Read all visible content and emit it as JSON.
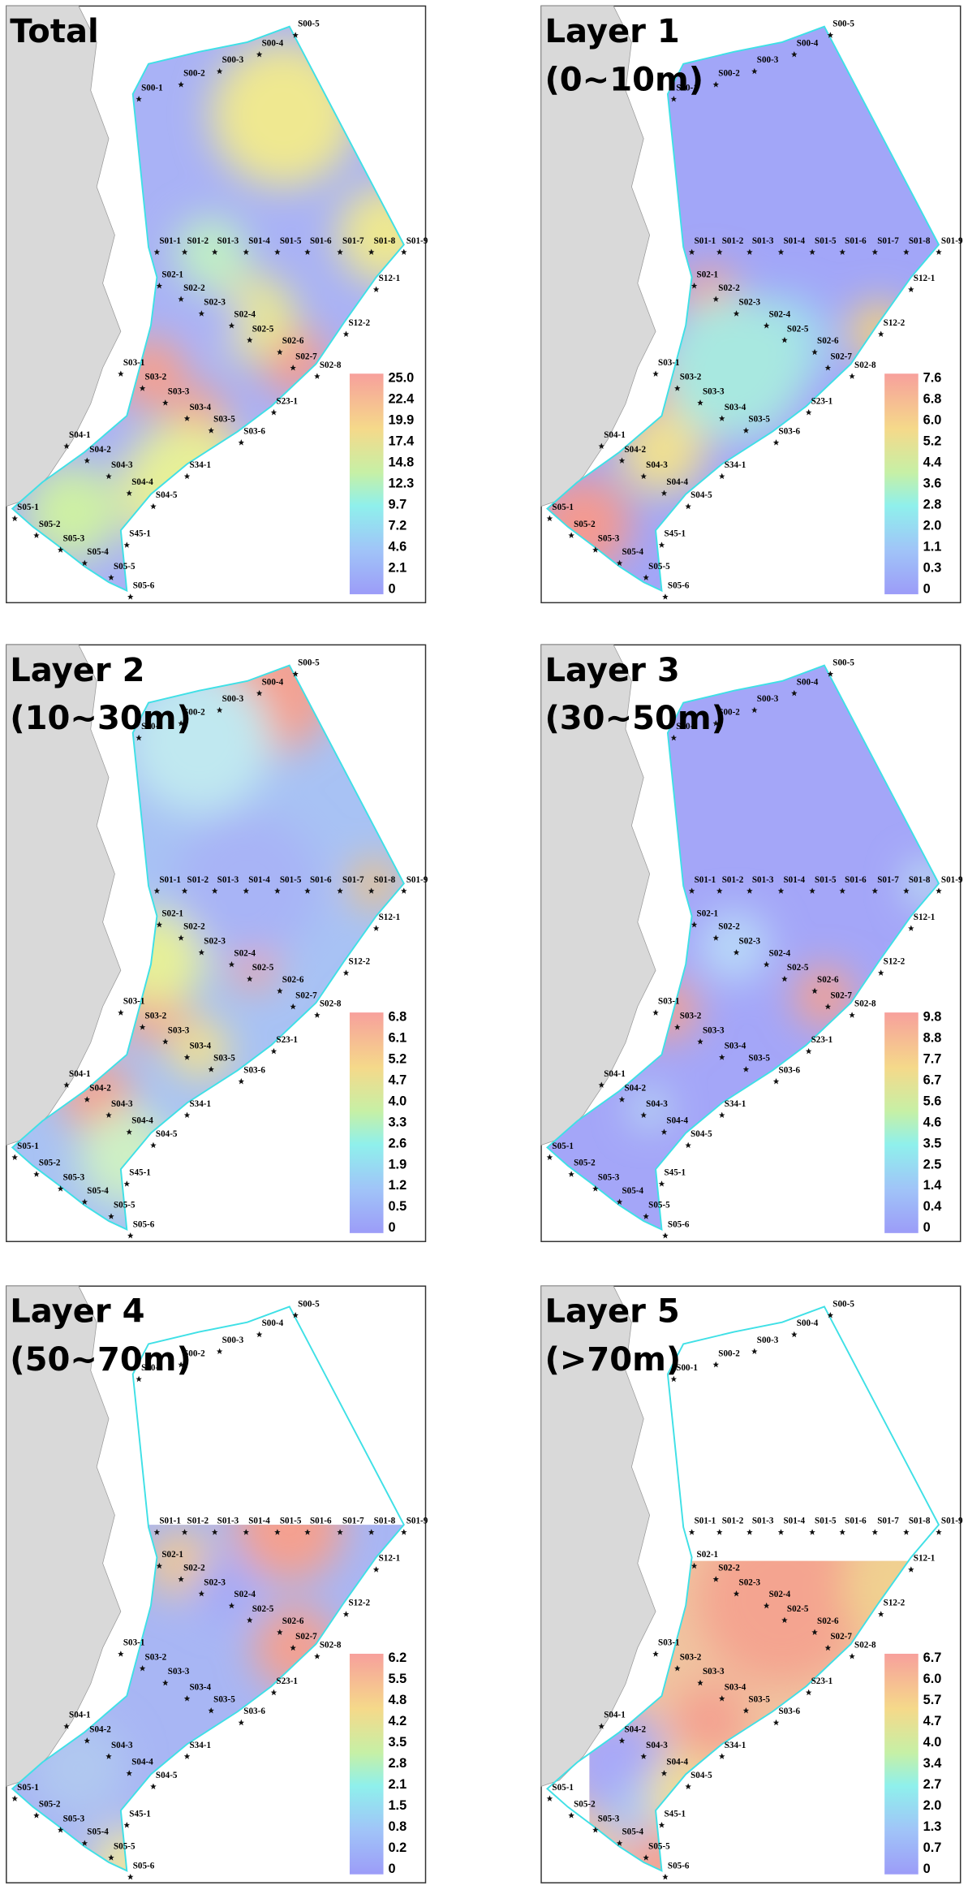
{
  "stations": [
    "S00-1",
    "S00-2",
    "S00-3",
    "S00-4",
    "S00-5",
    "S01-1",
    "S01-2",
    "S01-3",
    "S01-4",
    "S01-5",
    "S01-6",
    "S01-7",
    "S01-8",
    "S01-9",
    "S12-1",
    "S12-2",
    "S02-8",
    "S23-1",
    "S03-6",
    "S34-1",
    "S04-5",
    "S45-1",
    "S05-5",
    "S05-6",
    "S02-1",
    "S02-2",
    "S02-3",
    "S02-4",
    "S02-5",
    "S02-6",
    "S02-7",
    "S03-1",
    "S03-2",
    "S03-3",
    "S03-4",
    "S03-5",
    "S04-1",
    "S04-2",
    "S04-3",
    "S04-4",
    "S05-1",
    "S05-2",
    "S05-3",
    "S05-4"
  ],
  "panels": [
    {
      "title": "Total",
      "colorbar_ticks": [
        "25.0",
        "22.4",
        "19.9",
        "17.4",
        "14.8",
        "12.3",
        "9.7",
        "7.2",
        "4.6",
        "2.1",
        "0"
      ]
    },
    {
      "title": "Layer 1",
      "subtitle": "(0~10m)",
      "colorbar_ticks": [
        "7.6",
        "6.8",
        "6.0",
        "5.2",
        "4.4",
        "3.6",
        "2.8",
        "2.0",
        "1.1",
        "0.3",
        "0"
      ]
    },
    {
      "title": "Layer 2",
      "subtitle": "(10~30m)",
      "colorbar_ticks": [
        "6.8",
        "6.1",
        "5.2",
        "4.7",
        "4.0",
        "3.3",
        "2.6",
        "1.9",
        "1.2",
        "0.5",
        "0"
      ]
    },
    {
      "title": "Layer 3",
      "subtitle": "(30~50m)",
      "colorbar_ticks": [
        "9.8",
        "8.8",
        "7.7",
        "6.7",
        "5.6",
        "4.6",
        "3.5",
        "2.5",
        "1.4",
        "0.4",
        "0"
      ]
    },
    {
      "title": "Layer 4",
      "subtitle": "(50~70m)",
      "colorbar_ticks": [
        "6.2",
        "5.5",
        "4.8",
        "4.2",
        "3.5",
        "2.8",
        "2.1",
        "1.5",
        "0.8",
        "0.2",
        "0"
      ]
    },
    {
      "title": "Layer 5",
      "subtitle": "(>70m)",
      "colorbar_ticks": [
        "6.7",
        "6.0",
        "5.7",
        "4.7",
        "4.0",
        "3.4",
        "2.7",
        "2.0",
        "1.3",
        "0.7",
        "0"
      ]
    }
  ]
}
